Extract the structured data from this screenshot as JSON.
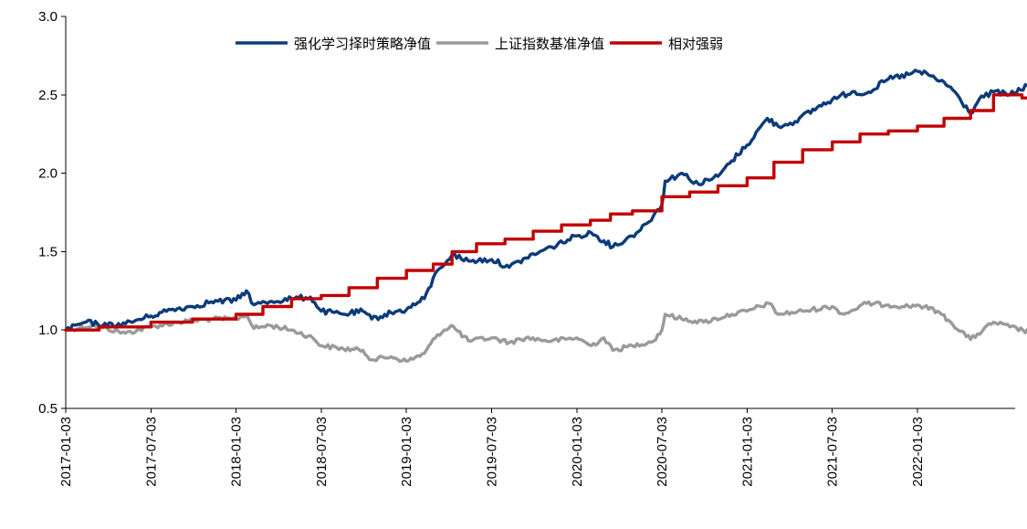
{
  "chart_data": {
    "type": "line",
    "title": "",
    "xlabel": "",
    "ylabel": "",
    "ylim": [
      0.5,
      3.0
    ],
    "yticks": [
      "0.5",
      "1.0",
      "1.5",
      "2.0",
      "2.5",
      "3.0"
    ],
    "xlim": [
      "2017-01-03",
      "2022-10-31"
    ],
    "xticks": [
      "2017-01-03",
      "2017-07-03",
      "2018-01-03",
      "2018-07-03",
      "2019-01-03",
      "2019-07-03",
      "2020-01-03",
      "2020-07-03",
      "2021-01-03",
      "2021-07-03",
      "2022-01-03"
    ],
    "grid": false,
    "legend_position": "top-center",
    "series": [
      {
        "name": "强化学习择时策略净值",
        "color": "#0b3b7a",
        "x": [
          "2017-01-03",
          "2017-02-15",
          "2017-04-01",
          "2017-05-10",
          "2017-07-03",
          "2017-08-15",
          "2017-10-01",
          "2017-11-10",
          "2018-01-03",
          "2018-01-25",
          "2018-02-10",
          "2018-03-15",
          "2018-05-01",
          "2018-06-10",
          "2018-07-03",
          "2018-08-20",
          "2018-10-01",
          "2018-10-20",
          "2018-12-01",
          "2019-01-03",
          "2019-02-10",
          "2019-03-10",
          "2019-04-10",
          "2019-05-15",
          "2019-07-03",
          "2019-08-10",
          "2019-09-15",
          "2019-11-10",
          "2020-01-03",
          "2020-02-03",
          "2020-03-01",
          "2020-03-20",
          "2020-04-30",
          "2020-06-01",
          "2020-07-03",
          "2020-07-10",
          "2020-08-15",
          "2020-09-20",
          "2020-11-01",
          "2020-12-01",
          "2021-01-03",
          "2021-02-15",
          "2021-03-10",
          "2021-04-15",
          "2021-06-01",
          "2021-07-03",
          "2021-08-15",
          "2021-09-15",
          "2021-11-01",
          "2021-12-15",
          "2022-01-03",
          "2022-02-01",
          "2022-03-15",
          "2022-04-27",
          "2022-05-15",
          "2022-06-15",
          "2022-07-20",
          "2022-09-10",
          "2022-10-31"
        ],
        "values": [
          1.0,
          1.05,
          1.03,
          1.04,
          1.09,
          1.13,
          1.15,
          1.18,
          1.19,
          1.25,
          1.16,
          1.18,
          1.2,
          1.21,
          1.12,
          1.1,
          1.12,
          1.07,
          1.11,
          1.13,
          1.2,
          1.38,
          1.48,
          1.44,
          1.45,
          1.4,
          1.46,
          1.53,
          1.6,
          1.62,
          1.57,
          1.53,
          1.6,
          1.68,
          1.8,
          1.95,
          2.0,
          1.93,
          1.98,
          2.08,
          2.18,
          2.35,
          2.3,
          2.33,
          2.42,
          2.47,
          2.52,
          2.51,
          2.6,
          2.63,
          2.65,
          2.62,
          2.55,
          2.38,
          2.47,
          2.52,
          2.5,
          2.58,
          2.68
        ]
      },
      {
        "name": "上证指数基准净值",
        "color": "#9a9a9a",
        "x": [
          "2017-01-03",
          "2017-03-01",
          "2017-05-10",
          "2017-07-03",
          "2017-09-01",
          "2017-11-10",
          "2018-01-03",
          "2018-01-25",
          "2018-02-10",
          "2018-03-15",
          "2018-05-01",
          "2018-06-15",
          "2018-07-03",
          "2018-08-20",
          "2018-10-01",
          "2018-10-20",
          "2018-12-01",
          "2019-01-03",
          "2019-02-10",
          "2019-03-10",
          "2019-04-08",
          "2019-05-15",
          "2019-07-03",
          "2019-08-10",
          "2019-09-15",
          "2019-11-10",
          "2020-01-03",
          "2020-02-03",
          "2020-03-01",
          "2020-03-20",
          "2020-05-01",
          "2020-06-15",
          "2020-07-03",
          "2020-07-10",
          "2020-08-15",
          "2020-10-01",
          "2020-12-01",
          "2021-01-03",
          "2021-02-18",
          "2021-03-10",
          "2021-05-01",
          "2021-07-03",
          "2021-07-28",
          "2021-09-15",
          "2021-11-01",
          "2021-12-15",
          "2022-01-03",
          "2022-02-15",
          "2022-03-15",
          "2022-04-27",
          "2022-06-15",
          "2022-07-20",
          "2022-09-10",
          "2022-10-31"
        ],
        "values": [
          1.0,
          1.03,
          0.98,
          1.02,
          1.05,
          1.07,
          1.07,
          1.1,
          1.01,
          1.03,
          1.0,
          0.95,
          0.9,
          0.88,
          0.87,
          0.81,
          0.83,
          0.8,
          0.85,
          0.97,
          1.03,
          0.93,
          0.95,
          0.92,
          0.95,
          0.93,
          0.95,
          0.9,
          0.95,
          0.87,
          0.9,
          0.93,
          1.0,
          1.1,
          1.07,
          1.05,
          1.1,
          1.12,
          1.17,
          1.1,
          1.12,
          1.15,
          1.1,
          1.17,
          1.16,
          1.15,
          1.16,
          1.12,
          1.05,
          0.94,
          1.05,
          1.02,
          0.98,
          1.08
        ]
      },
      {
        "name": "相对强弱",
        "color": "#c00000",
        "x": [
          "2017-01-03",
          "2017-03-15",
          "2017-07-03",
          "2017-10-01",
          "2018-01-03",
          "2018-03-01",
          "2018-05-01",
          "2018-07-03",
          "2018-09-01",
          "2018-11-01",
          "2019-01-03",
          "2019-03-01",
          "2019-04-10",
          "2019-06-01",
          "2019-08-01",
          "2019-10-01",
          "2019-12-01",
          "2020-02-01",
          "2020-03-15",
          "2020-05-01",
          "2020-07-03",
          "2020-09-01",
          "2020-11-01",
          "2021-01-03",
          "2021-03-01",
          "2021-05-01",
          "2021-07-03",
          "2021-09-01",
          "2021-11-01",
          "2022-01-03",
          "2022-03-01",
          "2022-04-27",
          "2022-06-15",
          "2022-08-15",
          "2022-10-31"
        ],
        "values": [
          1.0,
          1.02,
          1.05,
          1.07,
          1.1,
          1.15,
          1.2,
          1.22,
          1.27,
          1.33,
          1.38,
          1.42,
          1.5,
          1.55,
          1.58,
          1.63,
          1.67,
          1.7,
          1.74,
          1.76,
          1.85,
          1.88,
          1.92,
          1.97,
          2.07,
          2.15,
          2.2,
          2.25,
          2.27,
          2.3,
          2.35,
          2.4,
          2.5,
          2.48,
          2.46
        ]
      }
    ]
  }
}
